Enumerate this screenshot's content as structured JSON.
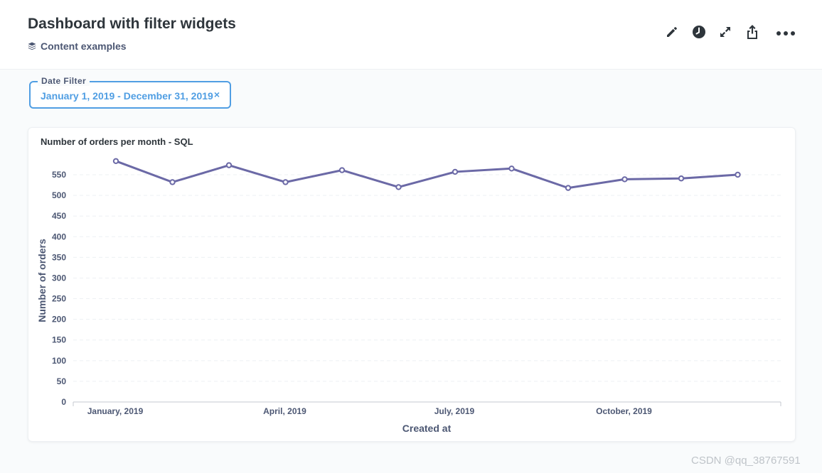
{
  "header": {
    "title": "Dashboard with filter widgets",
    "collection": "Content examples",
    "actions": [
      {
        "name": "edit-icon"
      },
      {
        "name": "history-icon"
      },
      {
        "name": "fullscreen-icon"
      },
      {
        "name": "share-icon"
      },
      {
        "name": "more-icon"
      }
    ]
  },
  "filter": {
    "label": "Date Filter",
    "value": "January 1, 2019 - December 31, 2019",
    "clear": "×"
  },
  "card": {
    "title": "Number of orders per month - SQL"
  },
  "chart_data": {
    "type": "line",
    "title": "Number of orders per month - SQL",
    "xlabel": "Created at",
    "ylabel": "Number of orders",
    "x": [
      "January, 2019",
      "February, 2019",
      "March, 2019",
      "April, 2019",
      "May, 2019",
      "June, 2019",
      "July, 2019",
      "August, 2019",
      "September, 2019",
      "October, 2019",
      "November, 2019",
      "December, 2019"
    ],
    "x_tick_labels": [
      "January, 2019",
      "April, 2019",
      "July, 2019",
      "October, 2019"
    ],
    "values": [
      583,
      532,
      573,
      532,
      561,
      520,
      557,
      565,
      518,
      539,
      541,
      550
    ],
    "yticks": [
      0,
      50,
      100,
      150,
      200,
      250,
      300,
      350,
      400,
      450,
      500,
      550
    ],
    "ylim": [
      0,
      550
    ],
    "grid": true,
    "legend": "none",
    "line_color": "#6b69a6"
  },
  "watermark": "CSDN @qq_38767591",
  "colors": {
    "accent": "#509ee3",
    "text": "#2e353b",
    "muted": "#4c5773"
  }
}
